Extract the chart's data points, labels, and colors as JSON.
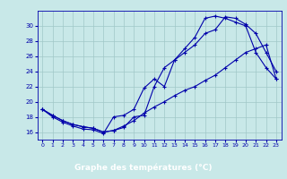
{
  "title": "Graphe des températures (°C)",
  "bg_color": "#c8e8e8",
  "grid_color": "#a0c8c8",
  "line_color": "#0000aa",
  "xlabel_bg": "#0000aa",
  "xlabel_fg": "#ffffff",
  "xlim": [
    -0.5,
    23.5
  ],
  "ylim": [
    15.0,
    32.0
  ],
  "xticks": [
    0,
    1,
    2,
    3,
    4,
    5,
    6,
    7,
    8,
    9,
    10,
    11,
    12,
    13,
    14,
    15,
    16,
    17,
    18,
    19,
    20,
    21,
    22,
    23
  ],
  "yticks": [
    16,
    18,
    20,
    22,
    24,
    26,
    28,
    30
  ],
  "line1_x": [
    0,
    1,
    2,
    3,
    4,
    5,
    6,
    7,
    8,
    9,
    10,
    11,
    12,
    13,
    14,
    15,
    16,
    17,
    18,
    19,
    20,
    21,
    22,
    23
  ],
  "line1_y": [
    19.0,
    18.2,
    17.5,
    17.0,
    16.7,
    16.5,
    16.0,
    16.2,
    16.6,
    18.0,
    18.2,
    22.0,
    24.5,
    25.5,
    26.5,
    27.5,
    29.0,
    29.5,
    31.2,
    31.0,
    30.2,
    29.0,
    26.5,
    24.0
  ],
  "line2_x": [
    0,
    1,
    2,
    3,
    4,
    5,
    6,
    7,
    8,
    9,
    10,
    11,
    12,
    13,
    14,
    15,
    16,
    17,
    18,
    19,
    20,
    21,
    22,
    23
  ],
  "line2_y": [
    19.0,
    18.0,
    17.3,
    16.8,
    16.4,
    16.3,
    15.8,
    18.0,
    18.2,
    19.0,
    21.8,
    23.0,
    22.0,
    25.5,
    27.0,
    28.5,
    31.0,
    31.3,
    31.0,
    30.5,
    30.0,
    26.5,
    24.5,
    23.0
  ],
  "line3_x": [
    0,
    1,
    2,
    3,
    4,
    5,
    6,
    7,
    8,
    9,
    10,
    11,
    12,
    13,
    14,
    15,
    16,
    17,
    18,
    19,
    20,
    21,
    22,
    23
  ],
  "line3_y": [
    19.0,
    18.2,
    17.5,
    17.0,
    16.7,
    16.5,
    16.0,
    16.2,
    16.8,
    17.5,
    18.5,
    19.3,
    20.0,
    20.8,
    21.5,
    22.0,
    22.8,
    23.5,
    24.5,
    25.5,
    26.5,
    27.0,
    27.5,
    23.0
  ]
}
